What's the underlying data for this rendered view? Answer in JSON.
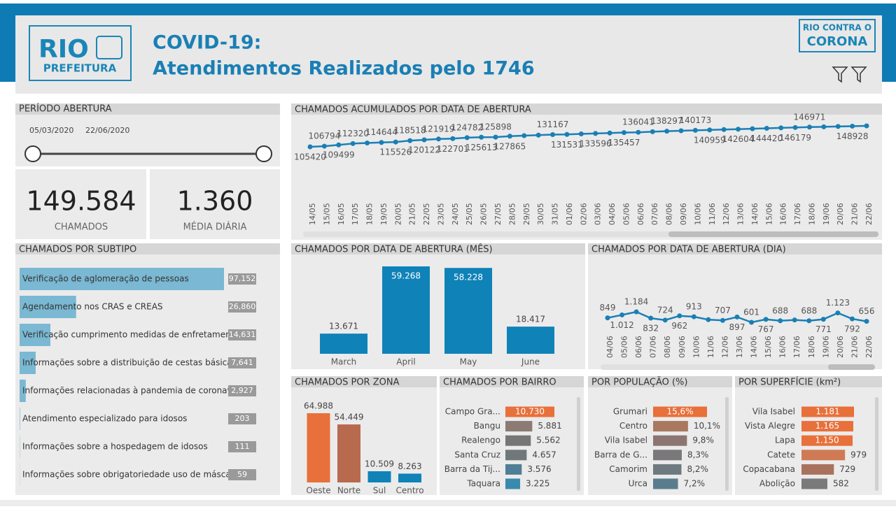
{
  "header": {
    "logo_main": "RIO",
    "logo_sub": "PREFEITURA",
    "title_line1": "COVID-19:",
    "title_line2": "Atendimentos Realizados pelo 1746",
    "badge_line1": "RIO CONTRA O",
    "badge_line2": "CORONA"
  },
  "period": {
    "title": "PERÍODO ABERTURA",
    "start": "05/03/2020",
    "end": "22/06/2020"
  },
  "kpis": [
    {
      "value": "149.584",
      "label": "CHAMADOS"
    },
    {
      "value": "1.360",
      "label": "MÉDIA DIÁRIA"
    }
  ],
  "chart_data": [
    {
      "type": "barh",
      "title": "CHAMADOS POR SUBTIPO",
      "color": "#7ab8d3",
      "categories": [
        "Verificação de aglomeração de pessoas",
        "Agendamento nos CRAS e CREAS",
        "Verificação cumprimento medidas de enfretamento",
        "Informações sobre a distribuição de cestas básicas",
        "Informações relacionadas à pandemia de coronavirus",
        "Atendimento especializado para idosos",
        "Informações sobre a hospedagem de idosos",
        "Informações sobre obrigatoriedade uso de máscaras"
      ],
      "values": [
        97152,
        26860,
        14631,
        7641,
        2927,
        203,
        111,
        59
      ],
      "value_labels": [
        "97,152",
        "26,860",
        "14,631",
        "7,641",
        "2,927",
        "203",
        "111",
        "59"
      ]
    },
    {
      "type": "line",
      "title": "CHAMADOS ACUMULADOS POR DATA DE ABERTURA",
      "color": "#1a7fb5",
      "categories": [
        "14/05",
        "15/05",
        "16/05",
        "17/05",
        "18/05",
        "19/05",
        "20/05",
        "21/05",
        "22/05",
        "23/05",
        "24/05",
        "25/05",
        "26/05",
        "27/05",
        "28/05",
        "29/05",
        "30/05",
        "31/05",
        "01/06",
        "02/06",
        "03/06",
        "04/06",
        "05/06",
        "06/06",
        "07/06",
        "08/06",
        "09/06",
        "10/06",
        "11/06",
        "12/06",
        "13/06",
        "14/06",
        "15/06",
        "16/06",
        "17/06",
        "18/06",
        "19/06",
        "20/06",
        "21/06",
        "22/06"
      ],
      "values": [
        105420,
        106794,
        109499,
        112320,
        113500,
        114644,
        115526,
        118518,
        120122,
        121919,
        122701,
        124782,
        125613,
        125898,
        127865,
        129000,
        130100,
        131167,
        131531,
        132600,
        133596,
        134500,
        135457,
        136041,
        137200,
        138297,
        139200,
        140173,
        140959,
        141800,
        142604,
        143500,
        144420,
        145300,
        146179,
        146971,
        147600,
        148300,
        148928,
        149584
      ],
      "value_labels": [
        "105420",
        "106794",
        "109499",
        "112320",
        null,
        "114644",
        "115526",
        "118518",
        "120122",
        "121919",
        "122701",
        "124782",
        "125613",
        "125898",
        "127865",
        null,
        null,
        "131167",
        "131531",
        null,
        "133596",
        null,
        "135457",
        "136041",
        null,
        "138297",
        null,
        "140173",
        "140959",
        null,
        "142604",
        null,
        "144420",
        null,
        "146179",
        "146971",
        null,
        null,
        "148928",
        null
      ]
    },
    {
      "type": "bar",
      "title": "CHAMADOS POR DATA DE ABERTURA (MÊS)",
      "color": "#0f82b8",
      "categories": [
        "March",
        "April",
        "May",
        "June"
      ],
      "values": [
        13671,
        59268,
        58228,
        18417
      ],
      "value_labels": [
        "13.671",
        "59.268",
        "58.228",
        "18.417"
      ]
    },
    {
      "type": "line",
      "title": "CHAMADOS POR DATA DE ABERTURA (DIA)",
      "color": "#1a7fb5",
      "categories": [
        "04/06",
        "05/06",
        "06/06",
        "07/06",
        "08/06",
        "09/06",
        "10/06",
        "11/06",
        "12/06",
        "13/06",
        "14/06",
        "15/06",
        "16/06",
        "17/06",
        "18/06",
        "19/06",
        "20/06",
        "21/06",
        "22/06"
      ],
      "values": [
        849,
        1012,
        1184,
        832,
        724,
        962,
        913,
        750,
        707,
        897,
        601,
        767,
        688,
        730,
        688,
        771,
        1123,
        792,
        656
      ],
      "value_labels": [
        "849",
        "1.012",
        "1.184",
        "832",
        "724",
        "962",
        "913",
        null,
        "707",
        "897",
        "601",
        "767",
        "688",
        null,
        "688",
        "771",
        "1.123",
        "792",
        "656"
      ]
    },
    {
      "type": "bar",
      "title": "CHAMADOS POR ZONA",
      "categories": [
        "Oeste",
        "Norte",
        "Sul",
        "Centro"
      ],
      "values": [
        64988,
        54449,
        10509,
        8263
      ],
      "value_labels": [
        "64.988",
        "54.449",
        "10.509",
        "8.263"
      ],
      "colors": [
        "#e8703a",
        "#b86a4f",
        "#0f82b8",
        "#0f82b8"
      ]
    },
    {
      "type": "barh",
      "title": "CHAMADOS POR BAIRRO",
      "categories": [
        "Campo Gra...",
        "Bangu",
        "Realengo",
        "Santa Cruz",
        "Barra da Tij...",
        "Taquara"
      ],
      "values": [
        10730,
        5881,
        5562,
        4657,
        3576,
        3225
      ],
      "value_labels": [
        "10.730",
        "5.881",
        "5.562",
        "4.657",
        "3.576",
        "3.225"
      ],
      "colors": [
        "#e8703a",
        "#8b7b74",
        "#767676",
        "#70787c",
        "#4e7f96",
        "#3a8aad"
      ]
    },
    {
      "type": "barh",
      "title": "POR POPULAÇÃO (%)",
      "categories": [
        "Grumari",
        "Centro",
        "Vila Isabel",
        "Barra de G...",
        "Camorim",
        "Urca"
      ],
      "values": [
        15.6,
        10.1,
        9.8,
        8.3,
        8.2,
        7.2
      ],
      "value_labels": [
        "15,6%",
        "10,1%",
        "9,8%",
        "8,3%",
        "8,2%",
        "7,2%"
      ],
      "colors": [
        "#e8703a",
        "#a9785f",
        "#8c7570",
        "#7a787a",
        "#6d7a80",
        "#5a7d8e"
      ]
    },
    {
      "type": "barh",
      "title": "POR SUPERFÍCIE (km²)",
      "categories": [
        "Vila Isabel",
        "Vista Alegre",
        "Lapa",
        "Catete",
        "Copacabana",
        "Abolição"
      ],
      "values": [
        1181,
        1165,
        1150,
        979,
        729,
        582
      ],
      "value_labels": [
        "1.181",
        "1.165",
        "1.150",
        "979",
        "729",
        "582"
      ],
      "colors": [
        "#e8703a",
        "#e8703a",
        "#e8703a",
        "#d07a55",
        "#a9725e",
        "#7a7a7a"
      ]
    }
  ]
}
